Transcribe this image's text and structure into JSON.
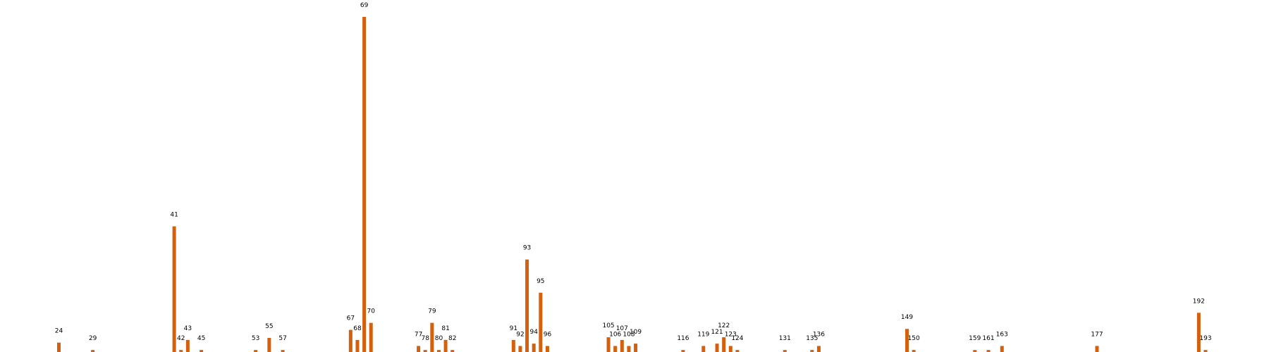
{
  "colors": {
    "bar": "#D4600E",
    "label": "#000000",
    "background": "#ffffff"
  },
  "chart_data": {
    "type": "bar",
    "title": "",
    "xlabel": "",
    "ylabel": "",
    "grid": false,
    "axes_visible": false,
    "xlim": [
      14,
      201
    ],
    "ylim": [
      0,
      100
    ],
    "categories": [
      24,
      29,
      41,
      42,
      43,
      45,
      53,
      55,
      57,
      67,
      68,
      69,
      70,
      77,
      78,
      79,
      80,
      81,
      82,
      91,
      92,
      93,
      94,
      95,
      96,
      105,
      106,
      107,
      108,
      109,
      116,
      119,
      121,
      122,
      123,
      124,
      131,
      135,
      136,
      149,
      150,
      159,
      161,
      163,
      177,
      192,
      193
    ],
    "values": [
      2.8,
      0.6,
      37.5,
      0.6,
      3.6,
      0.6,
      0.6,
      4.2,
      0.6,
      6.6,
      3.6,
      100,
      8.7,
      1.8,
      0.6,
      8.7,
      0.6,
      3.6,
      0.6,
      3.6,
      1.8,
      27.6,
      2.5,
      17.7,
      1.8,
      4.4,
      1.8,
      3.6,
      1.8,
      2.5,
      0.6,
      1.8,
      2.5,
      4.4,
      1.8,
      0.6,
      0.6,
      0.6,
      1.8,
      6.9,
      0.6,
      0.6,
      0.6,
      1.8,
      1.8,
      11.7,
      0.6
    ]
  }
}
